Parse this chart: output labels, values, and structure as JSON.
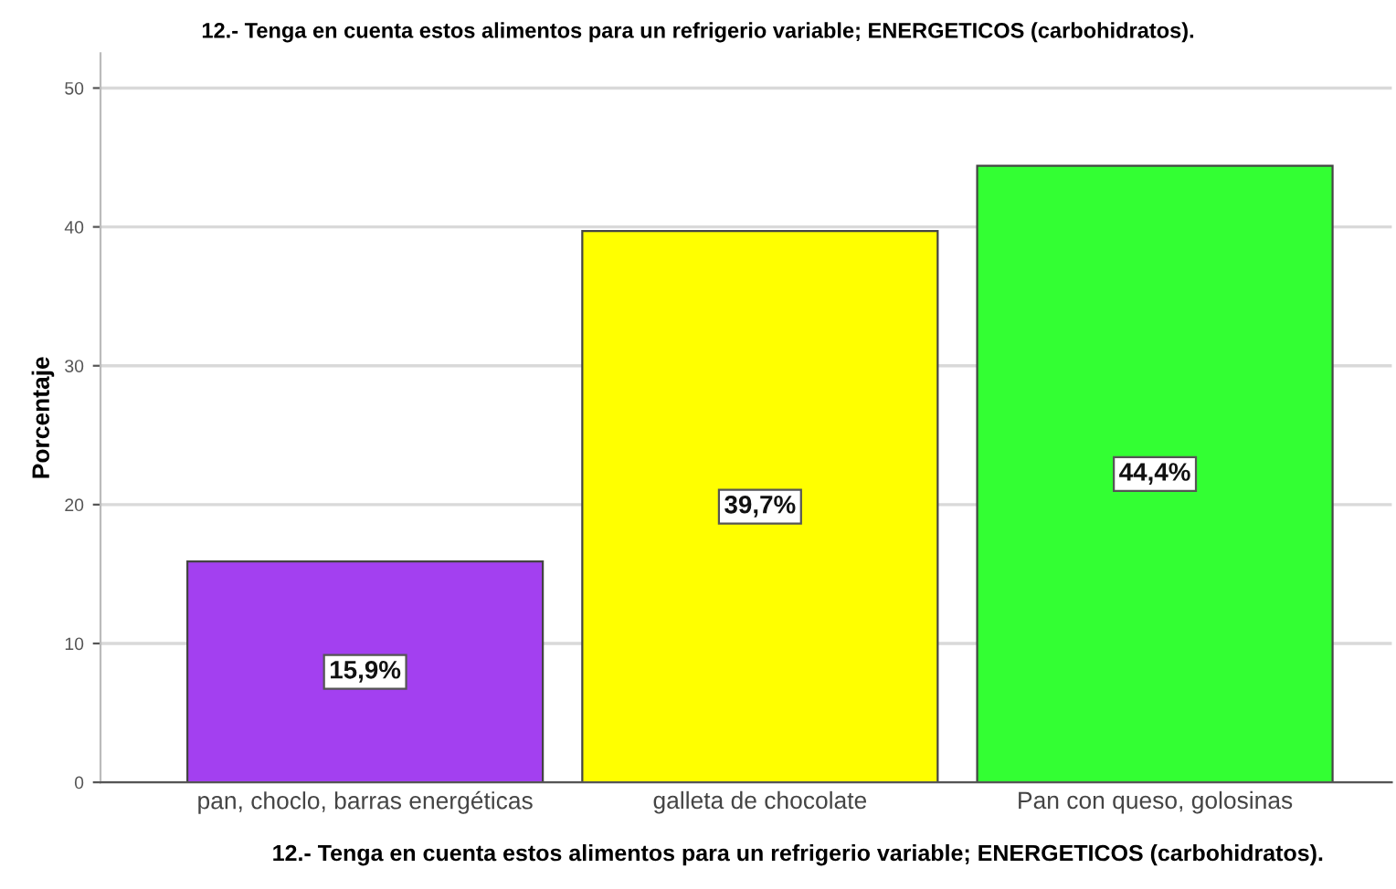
{
  "chart_data": {
    "type": "bar",
    "title": "12.- Tenga en cuenta estos alimentos para un refrigerio variable; ENERGETICOS (carbohidratos).",
    "xlabel": "12.- Tenga en cuenta estos alimentos para un refrigerio variable; ENERGETICOS (carbohidratos).",
    "ylabel": "Porcentaje",
    "categories": [
      "pan, choclo, barras energéticas",
      "galleta de chocolate",
      "Pan con queso, golosinas"
    ],
    "values": [
      15.9,
      39.7,
      44.4
    ],
    "value_labels": [
      "15,9%",
      "39,7%",
      "44,4%"
    ],
    "colors": [
      "#a340f0",
      "#ffff00",
      "#33ff33"
    ],
    "ylim": [
      0,
      52.5
    ],
    "yticks": [
      0,
      10,
      20,
      30,
      40,
      50
    ],
    "grid": "y"
  }
}
